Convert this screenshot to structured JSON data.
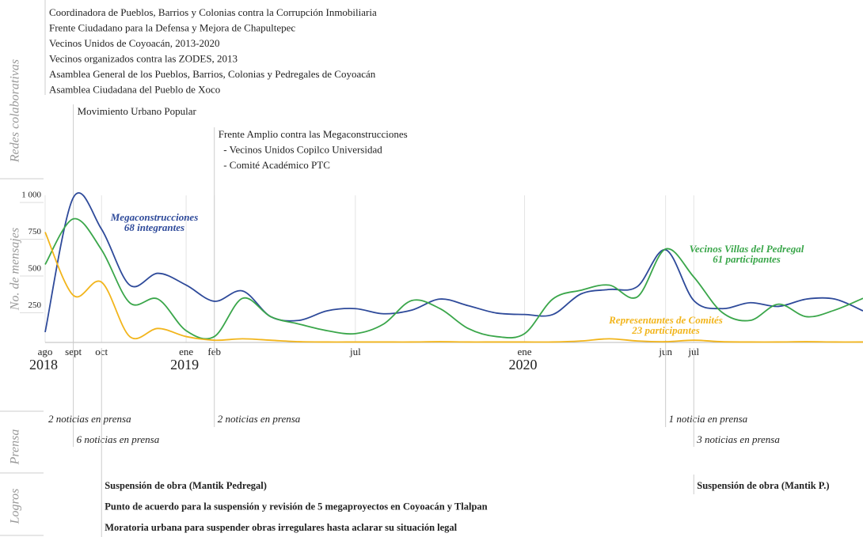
{
  "chart_data": {
    "type": "line",
    "y_label": "No. de mensajes",
    "xlim": [
      0,
      29
    ],
    "xticks": [
      {
        "value": 0,
        "label": "ago"
      },
      {
        "value": 1,
        "label": "sept"
      },
      {
        "value": 2,
        "label": "oct"
      },
      {
        "value": 5,
        "label": "ene"
      },
      {
        "value": 6,
        "label": "feb"
      },
      {
        "value": 11,
        "label": "jul"
      },
      {
        "value": 17,
        "label": "ene"
      },
      {
        "value": 22,
        "label": "jun"
      },
      {
        "value": 23,
        "label": "jul"
      }
    ],
    "years": [
      {
        "value": 0,
        "label": "2018"
      },
      {
        "value": 5,
        "label": "2019"
      },
      {
        "value": 17,
        "label": "2020"
      }
    ],
    "ylim": [
      0,
      1000
    ],
    "yticks": [
      250,
      500,
      750,
      {
        "value": 1000,
        "label": "1 000"
      }
    ],
    "grid": true,
    "x": [
      0,
      1,
      2,
      3,
      4,
      5,
      6,
      7,
      8,
      9,
      10,
      11,
      12,
      13,
      14,
      15,
      16,
      17,
      18,
      19,
      20,
      21,
      22,
      23,
      24,
      25,
      26,
      27,
      28,
      29
    ],
    "series": [
      {
        "name": "Megaconstrucciones",
        "note": "68 integrantes",
        "color": "#2e4a9a",
        "values": [
          70,
          985,
          770,
          390,
          470,
          390,
          280,
          350,
          175,
          150,
          215,
          230,
          195,
          220,
          295,
          250,
          200,
          190,
          190,
          330,
          360,
          380,
          630,
          285,
          230,
          270,
          245,
          295,
          295,
          215
        ]
      },
      {
        "name": "Vecinos Villas del Pedregal",
        "note": "61 participantes",
        "color": "#3aa64a",
        "values": [
          530,
          840,
          630,
          270,
          295,
          80,
          40,
          300,
          175,
          125,
          80,
          60,
          125,
          285,
          230,
          95,
          40,
          60,
          295,
          355,
          390,
          310,
          635,
          445,
          205,
          150,
          260,
          175,
          220,
          300
        ]
      },
      {
        "name": "Representantes de Comités",
        "note": "23 participantes",
        "color": "#f2b51c",
        "values": [
          750,
          320,
          410,
          40,
          95,
          40,
          15,
          25,
          15,
          5,
          3,
          3,
          3,
          3,
          5,
          3,
          3,
          3,
          3,
          10,
          25,
          10,
          5,
          15,
          5,
          3,
          3,
          5,
          3,
          3
        ]
      }
    ],
    "networks": {
      "label": "Redes colaborativas",
      "events": [
        {
          "x": 0,
          "lines": [
            "Coordinadora de Pueblos, Barrios y Colonias contra la Corrupción Inmobiliaria",
            "Frente Ciudadano para la Defensa y Mejora de Chapultepec",
            "Vecinos Unidos de Coyoacán, 2013-2020",
            "Vecinos organizados contra las ZODES, 2013",
            "Asamblea General de los Pueblos, Barrios, Colonias y Pedregales de Coyoacán",
            "Asamblea Ciudadana del Pueblo de Xoco"
          ]
        },
        {
          "x": 1,
          "lines": [
            "Movimiento Urbano Popular"
          ]
        },
        {
          "x": 6,
          "lines": [
            "Frente Amplio contra las Megaconstrucciones",
            "  - Vecinos Unidos Copilco Universidad",
            "  - Comité Académico PTC"
          ]
        }
      ]
    },
    "press": {
      "label": "Prensa",
      "events": [
        {
          "x": 0,
          "text": "2 noticias en prensa"
        },
        {
          "x": 1,
          "text": "6 noticias en prensa"
        },
        {
          "x": 6,
          "text": "2 noticias en prensa"
        },
        {
          "x": 22,
          "text": "1 noticia en prensa"
        },
        {
          "x": 23,
          "text": "3 noticias en prensa"
        }
      ]
    },
    "achievements": {
      "label": "Logros",
      "events": [
        {
          "x": 2,
          "text": "Suspensión de obra (Mantik Pedregal)"
        },
        {
          "x": 2,
          "text": "Punto de acuerdo para la suspensión y revisión de 5 megaproyectos en Coyoacán y Tlalpan"
        },
        {
          "x": 2,
          "text": "Moratoria urbana para suspender obras irregulares hasta aclarar su situación legal"
        },
        {
          "x": 23,
          "text": "Suspensión de obra (Mantik P.)"
        }
      ]
    }
  }
}
